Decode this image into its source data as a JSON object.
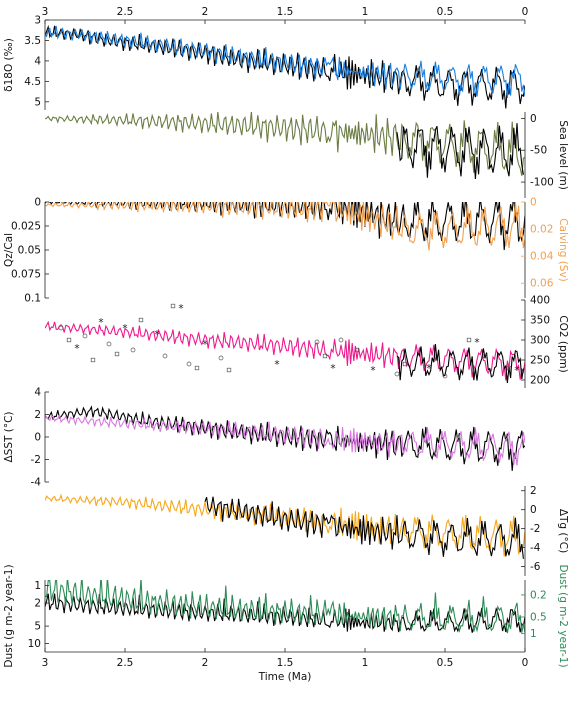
{
  "chart_data": {
    "type": "line",
    "xlabel": "Time (Ma)",
    "xlim": [
      3,
      0
    ],
    "xticks": [
      "3",
      "2.5",
      "2",
      "1.5",
      "1",
      "0.5",
      "0"
    ],
    "colors": {
      "black": "#000000",
      "blue": "#1a7fe0",
      "lightblue": "#78b6ef",
      "olive": "#6b7d44",
      "orange": "#f0a050",
      "pink": "#ee1a8e",
      "lightpink": "#f39ac6",
      "violet": "#d879e0",
      "amber": "#f5a81a",
      "green": "#2e8b57",
      "lightgreen": "#7fc79b",
      "markers": "#555555"
    },
    "panels": [
      {
        "id": "d18o",
        "ylabel": "δ18O (‰)",
        "yaxis_side": "left",
        "ylim": [
          3,
          5.2
        ],
        "inverted": true,
        "yticks": [
          "3",
          "3.5",
          "4",
          "4.5",
          "5"
        ],
        "series": [
          {
            "color": "black",
            "values": [
              [
                3,
                3.3
              ],
              [
                2.8,
                3.35
              ],
              [
                2.6,
                3.5
              ],
              [
                2.4,
                3.6
              ],
              [
                2.2,
                3.7
              ],
              [
                2,
                3.8
              ],
              [
                1.8,
                3.95
              ],
              [
                1.6,
                4.05
              ],
              [
                1.4,
                4.15
              ],
              [
                1.2,
                4.25
              ],
              [
                1,
                4.35
              ],
              [
                0.8,
                4.45
              ],
              [
                0.6,
                4.55
              ],
              [
                0.4,
                4.6
              ],
              [
                0.2,
                4.6
              ],
              [
                0,
                4.6
              ]
            ],
            "amp": [
              0.2,
              0.7
            ]
          },
          {
            "color": "blue",
            "values": [
              [
                3,
                3.3
              ],
              [
                2.8,
                3.35
              ],
              [
                2.6,
                3.45
              ],
              [
                2.4,
                3.55
              ],
              [
                2.2,
                3.65
              ],
              [
                2,
                3.75
              ],
              [
                1.8,
                3.9
              ],
              [
                1.6,
                4.0
              ],
              [
                1.4,
                4.1
              ],
              [
                1.2,
                4.2
              ],
              [
                1,
                4.3
              ],
              [
                0.8,
                4.35
              ],
              [
                0.6,
                4.4
              ],
              [
                0.4,
                4.45
              ],
              [
                0.2,
                4.45
              ],
              [
                0,
                4.45
              ]
            ],
            "amp": [
              0.2,
              0.6
            ]
          }
        ]
      },
      {
        "id": "sealevel",
        "ylabel": "Sea level (m)",
        "yaxis_side": "right",
        "ylim": [
          -125,
          10
        ],
        "yticks": [
          "0",
          "-50",
          "-100"
        ],
        "series": [
          {
            "color": "olive",
            "values": [
              [
                3,
                0
              ],
              [
                2.5,
                -3
              ],
              [
                2,
                -8
              ],
              [
                1.5,
                -15
              ],
              [
                1,
                -25
              ],
              [
                0.5,
                -40
              ],
              [
                0,
                -55
              ]
            ],
            "amp": [
              5,
              60
            ]
          },
          {
            "color": "black",
            "from": 0.8,
            "values": [
              [
                0.8,
                -40
              ],
              [
                0.4,
                -50
              ],
              [
                0,
                -55
              ]
            ],
            "amp": [
              50,
              60
            ]
          }
        ]
      },
      {
        "id": "qzcal",
        "ylabel": "Qz/Cal",
        "ylabel2": "Calving (Sv)",
        "yaxis_side": "both",
        "ylim": [
          0,
          0.1
        ],
        "inverted": true,
        "yticks": [
          "0",
          "0.025",
          "0.05",
          "0.075",
          "0.1"
        ],
        "yticks2": [
          "0",
          "0.02",
          "0.04",
          "0.06"
        ],
        "series": [
          {
            "color": "black",
            "values": [
              [
                3,
                0
              ],
              [
                2,
                0.001
              ],
              [
                1.2,
                0.004
              ],
              [
                1,
                0.01
              ],
              [
                0.8,
                0.02
              ],
              [
                0.4,
                0.02
              ],
              [
                0,
                0.02
              ]
            ],
            "amp": [
              0.002,
              0.04
            ]
          },
          {
            "color": "orange",
            "values": [
              [
                3,
                0.003
              ],
              [
                2,
                0.004
              ],
              [
                1.2,
                0.008
              ],
              [
                1,
                0.015
              ],
              [
                0.7,
                0.03
              ],
              [
                0.4,
                0.028
              ],
              [
                0,
                0.025
              ]
            ],
            "amp": [
              0.002,
              0.035
            ]
          }
        ]
      },
      {
        "id": "co2",
        "ylabel": "CO2 (ppm)",
        "yaxis_side": "right",
        "ylim": [
          180,
          400
        ],
        "yticks": [
          "400",
          "350",
          "300",
          "250",
          "200"
        ],
        "series": [
          {
            "color": "pink",
            "values": [
              [
                3,
                335
              ],
              [
                2.5,
                320
              ],
              [
                2,
                300
              ],
              [
                1.5,
                285
              ],
              [
                1,
                265
              ],
              [
                0.5,
                250
              ],
              [
                0,
                240
              ]
            ],
            "amp": [
              15,
              55
            ]
          },
          {
            "color": "black",
            "from": 0.8,
            "values": [
              [
                0.8,
                245
              ],
              [
                0.4,
                240
              ],
              [
                0,
                240
              ]
            ],
            "amp": [
              50,
              60
            ]
          }
        ],
        "markers": [
          [
            2.9,
            330
          ],
          [
            2.85,
            300
          ],
          [
            2.8,
            280
          ],
          [
            2.75,
            310
          ],
          [
            2.7,
            250
          ],
          [
            2.65,
            345
          ],
          [
            2.6,
            290
          ],
          [
            2.55,
            265
          ],
          [
            2.5,
            330
          ],
          [
            2.45,
            275
          ],
          [
            2.4,
            350
          ],
          [
            2.3,
            315
          ],
          [
            2.25,
            260
          ],
          [
            2.2,
            385
          ],
          [
            2.15,
            380
          ],
          [
            2.1,
            240
          ],
          [
            2.05,
            230
          ],
          [
            2,
            290
          ],
          [
            1.9,
            255
          ],
          [
            1.85,
            225
          ],
          [
            1.55,
            240
          ],
          [
            1.3,
            295
          ],
          [
            1.25,
            260
          ],
          [
            1.2,
            230
          ],
          [
            1.15,
            300
          ],
          [
            1.05,
            275
          ],
          [
            0.95,
            225
          ],
          [
            0.8,
            215
          ],
          [
            0.75,
            240
          ],
          [
            0.6,
            230
          ],
          [
            0.5,
            210
          ],
          [
            0.35,
            300
          ],
          [
            0.3,
            295
          ],
          [
            0.25,
            260
          ],
          [
            0.1,
            230
          ],
          [
            0.05,
            225
          ]
        ]
      },
      {
        "id": "sst",
        "ylabel": "ΔSST (°C)",
        "yaxis_side": "left",
        "ylim": [
          -4,
          4
        ],
        "yticks": [
          "4",
          "2",
          "0",
          "-2",
          "-4"
        ],
        "series": [
          {
            "color": "black",
            "values": [
              [
                3,
                1.8
              ],
              [
                2.7,
                2.3
              ],
              [
                2.4,
                1.5
              ],
              [
                2,
                0.8
              ],
              [
                1.5,
                0
              ],
              [
                1,
                -0.5
              ],
              [
                0.5,
                -0.8
              ],
              [
                0,
                -1
              ]
            ],
            "amp": [
              0.5,
              2.5
            ]
          },
          {
            "color": "violet",
            "values": [
              [
                3,
                1.7
              ],
              [
                2.5,
                1.2
              ],
              [
                2,
                0.8
              ],
              [
                1.5,
                0.2
              ],
              [
                1,
                -0.4
              ],
              [
                0.5,
                -0.7
              ],
              [
                0,
                -1
              ]
            ],
            "amp": [
              0.4,
              2.2
            ]
          }
        ]
      },
      {
        "id": "tg",
        "ylabel": "ΔTg (°C)",
        "yaxis_side": "right",
        "ylim": [
          -7,
          2.5
        ],
        "yticks": [
          "2",
          "0",
          "-2",
          "-4",
          "-6"
        ],
        "series": [
          {
            "color": "amber",
            "values": [
              [
                3,
                1.2
              ],
              [
                2.5,
                0.8
              ],
              [
                2,
                0
              ],
              [
                1.5,
                -0.8
              ],
              [
                1,
                -1.8
              ],
              [
                0.5,
                -2.5
              ],
              [
                0,
                -3
              ]
            ],
            "amp": [
              0.4,
              3
            ]
          },
          {
            "color": "black",
            "from": 2.0,
            "values": [
              [
                2,
                0.5
              ],
              [
                1.5,
                -1
              ],
              [
                1,
                -2.2
              ],
              [
                0.5,
                -3
              ],
              [
                0,
                -3.3
              ]
            ],
            "amp": [
              1,
              3
            ]
          }
        ]
      },
      {
        "id": "dust",
        "ylabel": "Dust (g m-2 year-1)",
        "ylabel2": "Dust (g m-2 year-1)",
        "yaxis_side": "both",
        "yscale": "log",
        "yticks": [
          "1",
          "2",
          "5",
          "10"
        ],
        "yticks2": [
          "0.2",
          "0.5",
          "1"
        ],
        "series": [
          {
            "color": "black",
            "values": [
              [
                3,
                2
              ],
              [
                2.5,
                2.5
              ],
              [
                2,
                3
              ],
              [
                1.5,
                3.5
              ],
              [
                1,
                4.5
              ],
              [
                0.5,
                4.5
              ],
              [
                0,
                4
              ]
            ],
            "amp": [
              1,
              3
            ]
          },
          {
            "color": "green",
            "values": [
              [
                3,
                1.2
              ],
              [
                2.5,
                1.8
              ],
              [
                2,
                2.5
              ],
              [
                1.5,
                3
              ],
              [
                1,
                3.5
              ],
              [
                0.5,
                4
              ],
              [
                0,
                4
              ]
            ],
            "amp": [
              1,
              3.5
            ]
          }
        ]
      }
    ]
  }
}
